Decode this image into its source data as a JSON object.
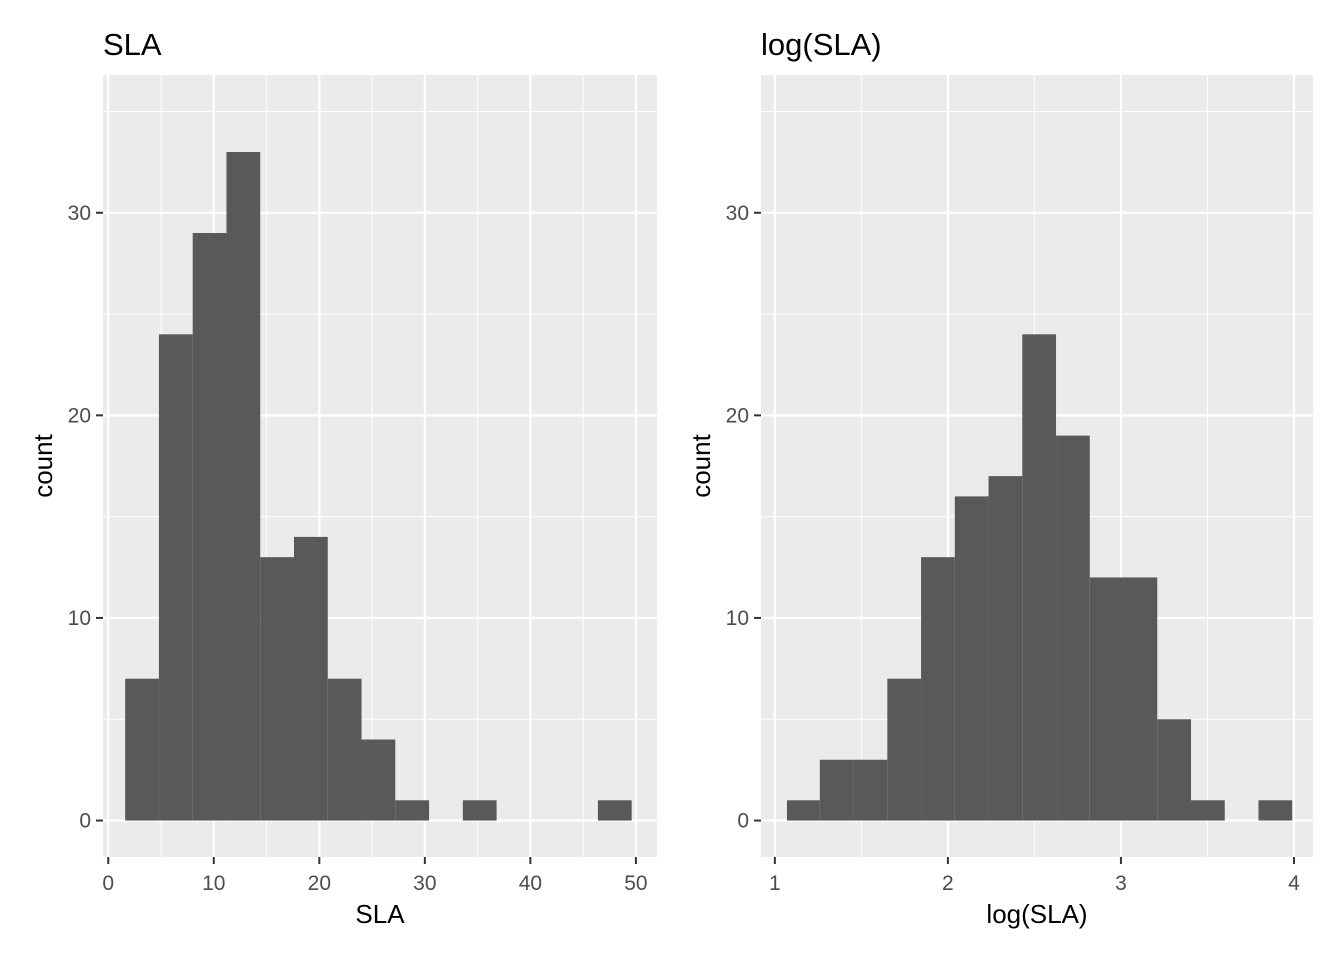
{
  "chart_data": [
    {
      "type": "bar",
      "title": "SLA",
      "xlabel": "SLA",
      "ylabel": "count",
      "xlim": [
        -0.5,
        52
      ],
      "ylim": [
        -1.8,
        36.8
      ],
      "x_ticks": [
        0,
        10,
        20,
        30,
        40,
        50
      ],
      "y_ticks": [
        0,
        10,
        20,
        30
      ],
      "bin_edges": [
        1.6,
        4.8,
        8.0,
        11.2,
        14.4,
        17.6,
        20.8,
        24.0,
        27.2,
        30.4,
        33.6,
        36.8,
        40.0,
        43.2,
        46.4,
        49.6
      ],
      "values": [
        7,
        24,
        29,
        33,
        13,
        14,
        7,
        4,
        1,
        0,
        1,
        0,
        0,
        0,
        1
      ],
      "colors": {
        "panel": "#ebebeb",
        "grid": "#ffffff",
        "bar": "#595959"
      },
      "grid": true
    },
    {
      "type": "bar",
      "title": "log(SLA)",
      "xlabel": "log(SLA)",
      "ylabel": "count",
      "xlim": [
        0.92,
        4.11
      ],
      "ylim": [
        -1.8,
        36.8
      ],
      "x_ticks": [
        1,
        2,
        3,
        4
      ],
      "y_ticks": [
        0,
        10,
        20,
        30
      ],
      "bin_edges": [
        1.07,
        1.26,
        1.455,
        1.65,
        1.845,
        2.04,
        2.235,
        2.43,
        2.625,
        2.82,
        3.015,
        3.21,
        3.405,
        3.6,
        3.795,
        3.99
      ],
      "values": [
        1,
        3,
        3,
        7,
        13,
        16,
        17,
        24,
        19,
        12,
        12,
        5,
        1,
        0,
        1
      ],
      "colors": {
        "panel": "#ebebeb",
        "grid": "#ffffff",
        "bar": "#595959"
      },
      "grid": true
    }
  ]
}
